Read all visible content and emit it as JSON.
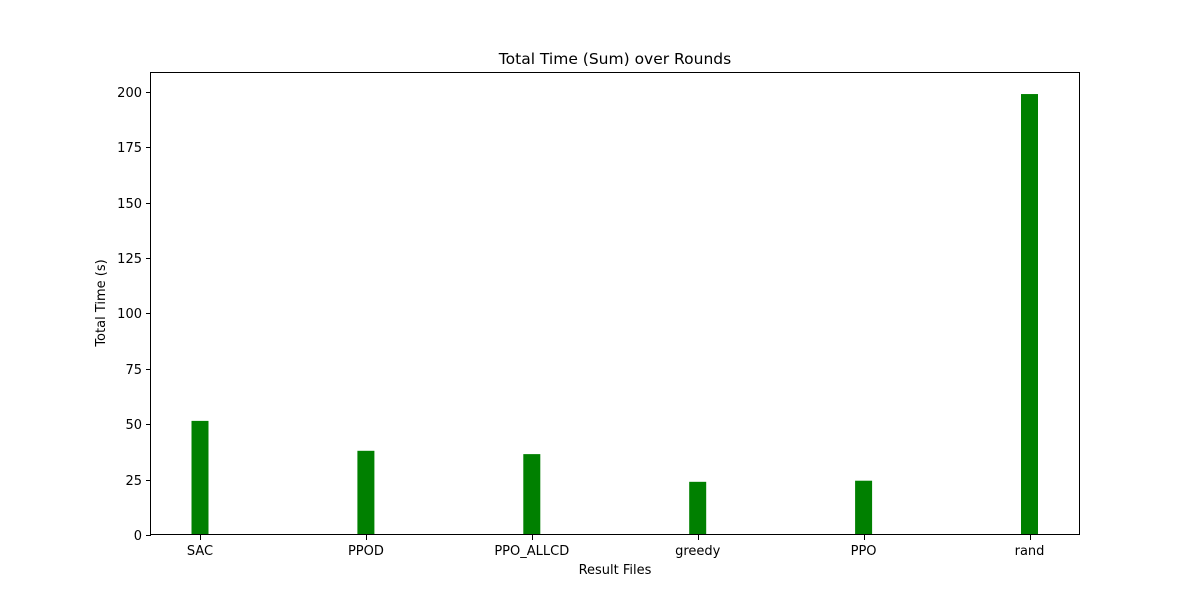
{
  "chart_data": {
    "type": "bar",
    "title": "Total Time (Sum) over Rounds",
    "xlabel": "Result Files",
    "ylabel": "Total Time (s)",
    "categories": [
      "SAC",
      "PPOD",
      "PPO_ALLCD",
      "greedy",
      "PPO",
      "rand"
    ],
    "values": [
      51.5,
      38,
      36.5,
      24,
      24.5,
      199
    ],
    "ylim": [
      0,
      208.95
    ],
    "yticks": [
      0,
      25,
      50,
      75,
      100,
      125,
      150,
      175,
      200
    ],
    "grid": false,
    "legend": "none",
    "bar_color": "#008000"
  }
}
